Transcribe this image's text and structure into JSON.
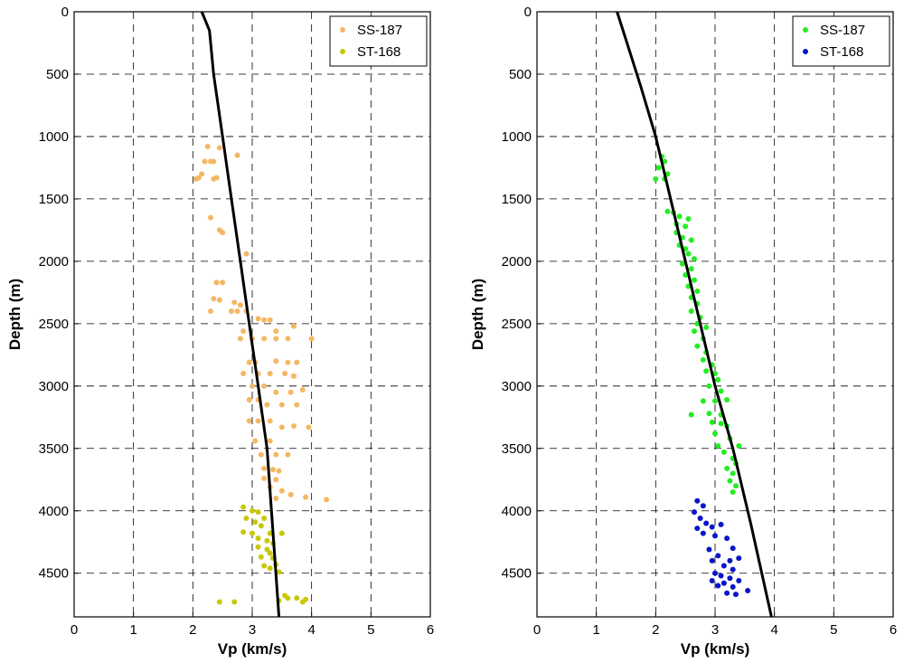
{
  "chart_data": [
    {
      "type": "scatter",
      "xlabel": "Vp (km/s)",
      "ylabel": "Depth (m)",
      "xlim": [
        0,
        6
      ],
      "ylim": [
        4850,
        0
      ],
      "y_inverted": true,
      "grid": true,
      "grid_style": "dashed",
      "legend_position": "top-right",
      "xticks": [
        "0",
        "1",
        "2",
        "3",
        "4",
        "5",
        "6"
      ],
      "yticks": [
        "0",
        "500",
        "1000",
        "1500",
        "2000",
        "2500",
        "3000",
        "3500",
        "4000",
        "4500"
      ],
      "trend_line": {
        "color": "#000000",
        "x": [
          2.15,
          2.28,
          2.35,
          2.5,
          2.65,
          2.8,
          2.95,
          3.1,
          3.25,
          3.45
        ],
        "y": [
          0,
          150,
          500,
          1000,
          1500,
          2000,
          2500,
          3000,
          3500,
          4850
        ]
      },
      "series": [
        {
          "name": "SS-187",
          "color": "#f5b763",
          "points": [
            [
              2.25,
              1080
            ],
            [
              2.45,
              1090
            ],
            [
              2.3,
              1200
            ],
            [
              2.35,
              1200
            ],
            [
              2.2,
              1200
            ],
            [
              2.75,
              1150
            ],
            [
              2.05,
              1340
            ],
            [
              2.1,
              1330
            ],
            [
              2.15,
              1300
            ],
            [
              2.4,
              1330
            ],
            [
              2.35,
              1340
            ],
            [
              2.3,
              1650
            ],
            [
              2.45,
              1750
            ],
            [
              2.5,
              1770
            ],
            [
              2.9,
              1940
            ],
            [
              2.4,
              2170
            ],
            [
              2.5,
              2170
            ],
            [
              2.35,
              2300
            ],
            [
              2.45,
              2310
            ],
            [
              2.7,
              2330
            ],
            [
              2.8,
              2350
            ],
            [
              2.65,
              2400
            ],
            [
              2.75,
              2400
            ],
            [
              2.3,
              2400
            ],
            [
              2.9,
              2400
            ],
            [
              3.1,
              2460
            ],
            [
              3.2,
              2470
            ],
            [
              3.3,
              2470
            ],
            [
              3.7,
              2520
            ],
            [
              2.85,
              2560
            ],
            [
              3.4,
              2560
            ],
            [
              2.8,
              2620
            ],
            [
              3.0,
              2620
            ],
            [
              3.2,
              2620
            ],
            [
              3.4,
              2620
            ],
            [
              3.6,
              2620
            ],
            [
              4.0,
              2620
            ],
            [
              2.95,
              2810
            ],
            [
              3.05,
              2810
            ],
            [
              3.4,
              2800
            ],
            [
              3.6,
              2810
            ],
            [
              3.75,
              2810
            ],
            [
              2.85,
              2900
            ],
            [
              3.1,
              2900
            ],
            [
              3.3,
              2900
            ],
            [
              3.55,
              2900
            ],
            [
              3.7,
              2920
            ],
            [
              3.0,
              3000
            ],
            [
              3.2,
              3000
            ],
            [
              3.4,
              3050
            ],
            [
              3.65,
              3050
            ],
            [
              3.85,
              3030
            ],
            [
              2.95,
              3110
            ],
            [
              3.1,
              3110
            ],
            [
              3.25,
              3150
            ],
            [
              3.5,
              3150
            ],
            [
              3.75,
              3150
            ],
            [
              2.95,
              3280
            ],
            [
              3.1,
              3280
            ],
            [
              3.3,
              3280
            ],
            [
              3.5,
              3330
            ],
            [
              3.7,
              3320
            ],
            [
              3.95,
              3330
            ],
            [
              3.05,
              3440
            ],
            [
              3.3,
              3440
            ],
            [
              3.15,
              3550
            ],
            [
              3.4,
              3550
            ],
            [
              3.6,
              3550
            ],
            [
              3.2,
              3660
            ],
            [
              3.35,
              3670
            ],
            [
              3.45,
              3680
            ],
            [
              3.2,
              3740
            ],
            [
              3.4,
              3750
            ],
            [
              3.3,
              3810
            ],
            [
              3.5,
              3840
            ],
            [
              3.65,
              3870
            ],
            [
              3.9,
              3890
            ],
            [
              4.25,
              3910
            ],
            [
              3.4,
              3900
            ]
          ]
        },
        {
          "name": "ST-168",
          "color": "#c8c80a",
          "points": [
            [
              2.85,
              3970
            ],
            [
              3.0,
              4000
            ],
            [
              3.1,
              4010
            ],
            [
              2.9,
              4060
            ],
            [
              3.2,
              4060
            ],
            [
              3.05,
              4090
            ],
            [
              3.15,
              4120
            ],
            [
              2.85,
              4170
            ],
            [
              3.0,
              4180
            ],
            [
              3.3,
              4180
            ],
            [
              3.5,
              4180
            ],
            [
              3.1,
              4220
            ],
            [
              3.25,
              4240
            ],
            [
              3.35,
              4260
            ],
            [
              3.1,
              4290
            ],
            [
              3.25,
              4310
            ],
            [
              3.3,
              4340
            ],
            [
              3.15,
              4370
            ],
            [
              3.35,
              4380
            ],
            [
              3.4,
              4430
            ],
            [
              3.2,
              4440
            ],
            [
              3.3,
              4460
            ],
            [
              3.45,
              4490
            ],
            [
              3.55,
              4680
            ],
            [
              3.6,
              4700
            ],
            [
              3.75,
              4700
            ],
            [
              3.9,
              4710
            ],
            [
              3.45,
              4720
            ],
            [
              2.45,
              4730
            ],
            [
              2.7,
              4730
            ],
            [
              3.85,
              4730
            ]
          ]
        }
      ]
    },
    {
      "type": "scatter",
      "xlabel": "Vp (km/s)",
      "ylabel": "Depth (m)",
      "xlim": [
        0,
        6
      ],
      "ylim": [
        4850,
        0
      ],
      "y_inverted": true,
      "grid": true,
      "grid_style": "dashed",
      "legend_position": "top-right",
      "xticks": [
        "0",
        "1",
        "2",
        "3",
        "4",
        "5",
        "6"
      ],
      "yticks": [
        "0",
        "500",
        "1000",
        "1500",
        "2000",
        "2500",
        "3000",
        "3500",
        "4000",
        "4500"
      ],
      "trend_line": {
        "color": "#000000",
        "x": [
          1.35,
          1.55,
          1.75,
          2.0,
          2.25,
          2.5,
          2.75,
          3.0,
          3.3,
          3.6,
          3.95
        ],
        "y": [
          0,
          300,
          600,
          1000,
          1500,
          2000,
          2500,
          3000,
          3500,
          4100,
          4850
        ]
      },
      "series": [
        {
          "name": "SS-187",
          "color": "#22ee22",
          "points": [
            [
              2.1,
              1160
            ],
            [
              2.15,
              1200
            ],
            [
              2.05,
              1250
            ],
            [
              2.2,
              1300
            ],
            [
              2.0,
              1340
            ],
            [
              2.15,
              1340
            ],
            [
              2.2,
              1600
            ],
            [
              2.3,
              1610
            ],
            [
              2.4,
              1640
            ],
            [
              2.55,
              1660
            ],
            [
              2.35,
              1700
            ],
            [
              2.5,
              1720
            ],
            [
              2.35,
              1770
            ],
            [
              2.45,
              1810
            ],
            [
              2.6,
              1830
            ],
            [
              2.4,
              1870
            ],
            [
              2.5,
              1900
            ],
            [
              2.55,
              1940
            ],
            [
              2.65,
              1980
            ],
            [
              2.45,
              2020
            ],
            [
              2.6,
              2060
            ],
            [
              2.5,
              2110
            ],
            [
              2.65,
              2150
            ],
            [
              2.55,
              2200
            ],
            [
              2.7,
              2240
            ],
            [
              2.6,
              2290
            ],
            [
              2.7,
              2340
            ],
            [
              2.6,
              2400
            ],
            [
              2.75,
              2450
            ],
            [
              2.7,
              2500
            ],
            [
              2.85,
              2530
            ],
            [
              2.65,
              2560
            ],
            [
              2.8,
              2620
            ],
            [
              2.7,
              2680
            ],
            [
              2.85,
              2730
            ],
            [
              2.8,
              2790
            ],
            [
              2.95,
              2830
            ],
            [
              2.85,
              2880
            ],
            [
              3.0,
              2900
            ],
            [
              3.05,
              2950
            ],
            [
              2.9,
              3000
            ],
            [
              3.1,
              3040
            ],
            [
              2.8,
              3120
            ],
            [
              3.0,
              3120
            ],
            [
              3.2,
              3110
            ],
            [
              2.6,
              3230
            ],
            [
              2.9,
              3220
            ],
            [
              3.1,
              3230
            ],
            [
              2.95,
              3290
            ],
            [
              3.1,
              3300
            ],
            [
              3.2,
              3320
            ],
            [
              3.0,
              3380
            ],
            [
              3.25,
              3420
            ],
            [
              3.05,
              3480
            ],
            [
              3.4,
              3480
            ],
            [
              3.15,
              3530
            ],
            [
              3.3,
              3580
            ],
            [
              3.35,
              3620
            ],
            [
              3.2,
              3660
            ],
            [
              3.3,
              3700
            ],
            [
              3.25,
              3760
            ],
            [
              3.35,
              3800
            ],
            [
              3.3,
              3850
            ]
          ]
        },
        {
          "name": "ST-168",
          "color": "#0a14c8",
          "points": [
            [
              2.7,
              3920
            ],
            [
              2.8,
              3960
            ],
            [
              2.65,
              4010
            ],
            [
              2.75,
              4060
            ],
            [
              2.85,
              4100
            ],
            [
              2.7,
              4140
            ],
            [
              2.95,
              4130
            ],
            [
              3.1,
              4110
            ],
            [
              2.8,
              4180
            ],
            [
              3.0,
              4200
            ],
            [
              3.2,
              4220
            ],
            [
              3.3,
              4300
            ],
            [
              2.9,
              4310
            ],
            [
              3.05,
              4360
            ],
            [
              2.95,
              4400
            ],
            [
              3.25,
              4400
            ],
            [
              3.4,
              4380
            ],
            [
              3.15,
              4440
            ],
            [
              3.3,
              4470
            ],
            [
              3.0,
              4500
            ],
            [
              3.1,
              4520
            ],
            [
              3.25,
              4540
            ],
            [
              3.4,
              4560
            ],
            [
              2.95,
              4560
            ],
            [
              3.15,
              4580
            ],
            [
              3.05,
              4600
            ],
            [
              3.3,
              4610
            ],
            [
              3.55,
              4640
            ],
            [
              3.2,
              4660
            ],
            [
              3.35,
              4670
            ]
          ]
        }
      ]
    }
  ]
}
